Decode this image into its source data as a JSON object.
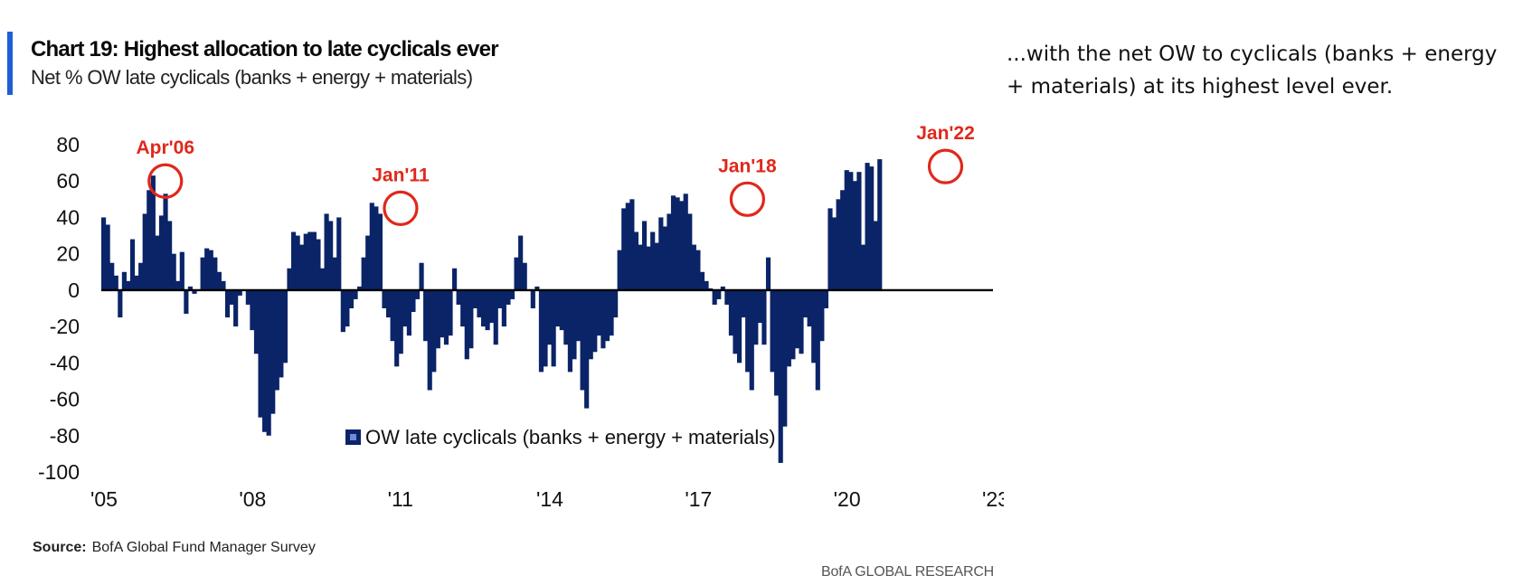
{
  "header": {
    "title": "Chart 19: Highest allocation to late cyclicals ever",
    "subtitle": "Net % OW late cyclicals (banks + energy + materials)"
  },
  "commentary": "...with the net OW to cyclicals (banks + energy + materials) at its highest level ever.",
  "footer": {
    "source_label": "Source:",
    "source_text": "BofA Global Fund Manager Survey",
    "brand": "BofA GLOBAL RESEARCH"
  },
  "colors": {
    "bar": "#0b2468",
    "annotation": "#e0281c",
    "accent": "#1f5fd6",
    "zero_line": "#000000"
  },
  "chart_data": {
    "type": "bar",
    "title": "Chart 19: Highest allocation to late cyclicals ever",
    "ylabel": "Net % OW late cyclicals (banks + energy + materials)",
    "xlabel": "",
    "ylim": [
      -100,
      80
    ],
    "yticks": [
      80,
      60,
      40,
      20,
      0,
      -20,
      -40,
      -60,
      -80,
      -100
    ],
    "xlim": [
      2005,
      2023
    ],
    "xticks": [
      {
        "value": 2005,
        "label": "'05"
      },
      {
        "value": 2008,
        "label": "'08"
      },
      {
        "value": 2011,
        "label": "'11"
      },
      {
        "value": 2014,
        "label": "'14"
      },
      {
        "value": 2017,
        "label": "'17"
      },
      {
        "value": 2020,
        "label": "'20"
      },
      {
        "value": 2023,
        "label": "'23"
      }
    ],
    "legend": {
      "label": "OW late cyclicals (banks + energy + materials)",
      "position": "bottom-center"
    },
    "start": "2005-01",
    "frequency": "monthly",
    "series": [
      {
        "name": "OW late cyclicals (banks + energy + materials)",
        "values": [
          40,
          36,
          15,
          8,
          -15,
          10,
          5,
          28,
          8,
          15,
          42,
          55,
          63,
          30,
          41,
          53,
          38,
          20,
          5,
          21,
          -13,
          2,
          -2,
          0,
          18,
          23,
          22,
          18,
          10,
          5,
          -15,
          -8,
          -20,
          -3,
          0,
          -8,
          -22,
          -35,
          -70,
          -78,
          -80,
          -68,
          -55,
          -48,
          -40,
          12,
          32,
          30,
          25,
          31,
          32,
          32,
          28,
          12,
          42,
          38,
          18,
          40,
          -23,
          -20,
          -10,
          -5,
          2,
          18,
          30,
          48,
          46,
          42,
          -10,
          -15,
          -28,
          -42,
          -35,
          -20,
          -25,
          -12,
          -5,
          15,
          -28,
          -55,
          -45,
          -32,
          -26,
          -30,
          -25,
          12,
          -8,
          -20,
          -38,
          -32,
          -10,
          -15,
          -20,
          -22,
          -18,
          -30,
          -10,
          -20,
          -8,
          -5,
          18,
          30,
          15,
          0,
          -10,
          2,
          -45,
          -42,
          -30,
          -42,
          -20,
          -22,
          -30,
          -45,
          -38,
          -28,
          -55,
          -65,
          -38,
          -34,
          -25,
          -32,
          -28,
          -25,
          -15,
          22,
          45,
          48,
          50,
          32,
          25,
          38,
          24,
          32,
          26,
          40,
          35,
          42,
          52,
          51,
          49,
          53,
          42,
          25,
          22,
          10,
          5,
          1,
          -8,
          -5,
          2,
          -8,
          -25,
          -35,
          -40,
          -15,
          -45,
          -55,
          -30,
          -18,
          -30,
          18,
          -45,
          -58,
          -95,
          -75,
          -42,
          -38,
          -32,
          -35,
          -15,
          -20,
          -40,
          -55,
          -28,
          -10,
          45,
          40,
          50,
          55,
          66,
          65,
          60,
          65,
          25,
          70,
          68,
          38,
          72
        ]
      }
    ],
    "annotations": [
      {
        "label": "Apr'06",
        "x": 2006.25,
        "y": 60
      },
      {
        "label": "Jan'11",
        "x": 2011.0,
        "y": 45
      },
      {
        "label": "Jan'18",
        "x": 2018.0,
        "y": 50
      },
      {
        "label": "Jan'22",
        "x": 2022.0,
        "y": 68
      }
    ]
  }
}
